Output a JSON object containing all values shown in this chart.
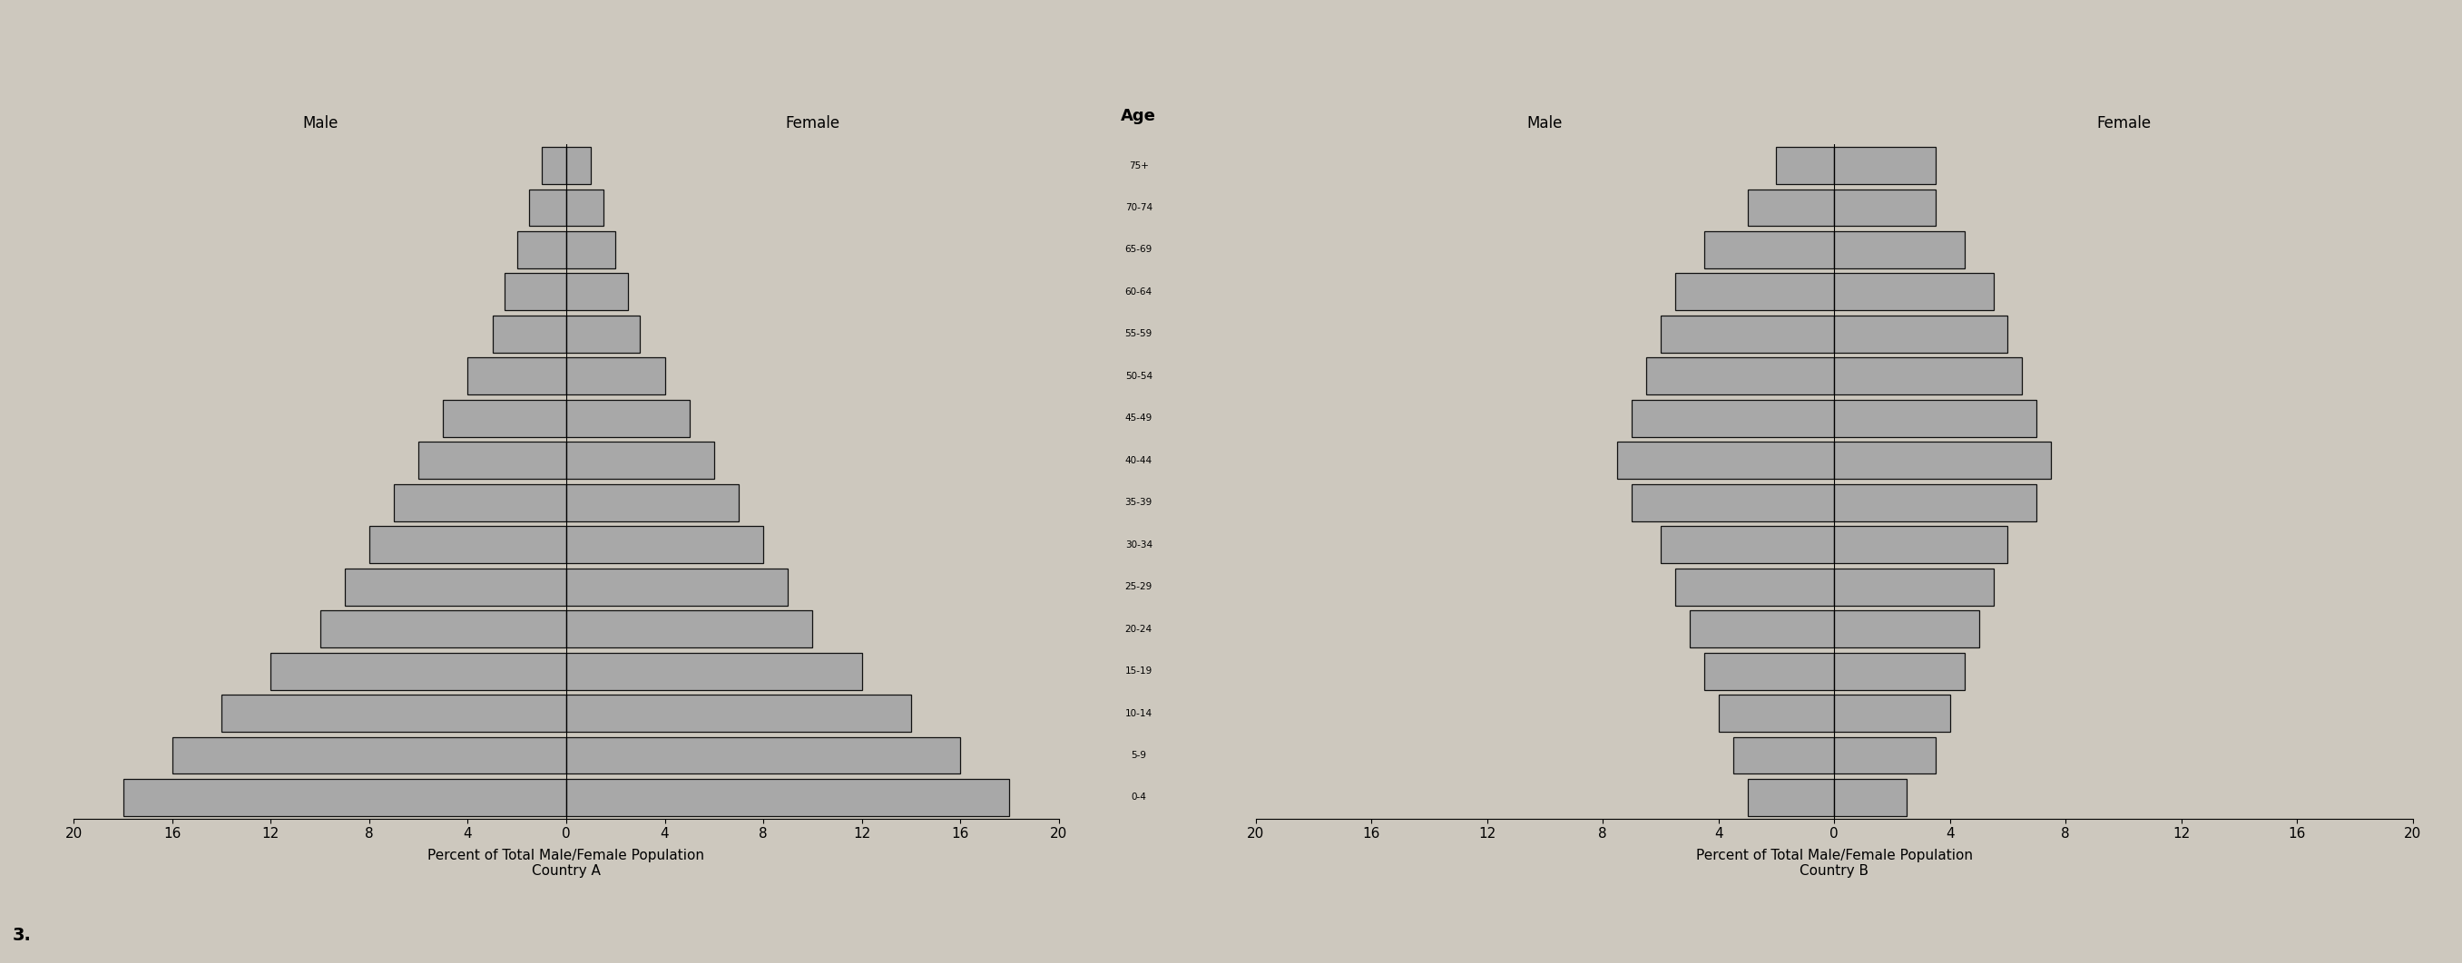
{
  "age_groups": [
    "0-4",
    "5-9",
    "10-14",
    "15-19",
    "20-24",
    "25-29",
    "30-34",
    "35-39",
    "40-44",
    "45-49",
    "50-54",
    "55-59",
    "60-64",
    "65-69",
    "70-74",
    "75+"
  ],
  "country_A_male": [
    18,
    16,
    14,
    12,
    10,
    9,
    8,
    7,
    6,
    5,
    4,
    3,
    2.5,
    2,
    1.5,
    1
  ],
  "country_A_female": [
    18,
    16,
    14,
    12,
    10,
    9,
    8,
    7,
    6,
    5,
    4,
    3,
    2.5,
    2,
    1.5,
    1
  ],
  "country_B_male": [
    3,
    3.5,
    4,
    4.5,
    5,
    5.5,
    6,
    7,
    7.5,
    7,
    6.5,
    6,
    5.5,
    4.5,
    3,
    2
  ],
  "country_B_female": [
    2.5,
    3.5,
    4,
    4.5,
    5,
    5.5,
    6,
    7,
    7.5,
    7,
    6.5,
    6,
    5.5,
    4.5,
    3.5,
    3.5
  ],
  "bar_color": "#a8a8a8",
  "bar_edge_color": "#111111",
  "bg_color": "#cdc8be",
  "title_age": "Age",
  "xlabel_A": "Percent of Total Male/Female Population\nCountry A",
  "xlabel_B": "Percent of Total Male/Female Population\nCountry B",
  "label_male": "Male",
  "label_female": "Female",
  "xlim": 20,
  "number_label": "3."
}
